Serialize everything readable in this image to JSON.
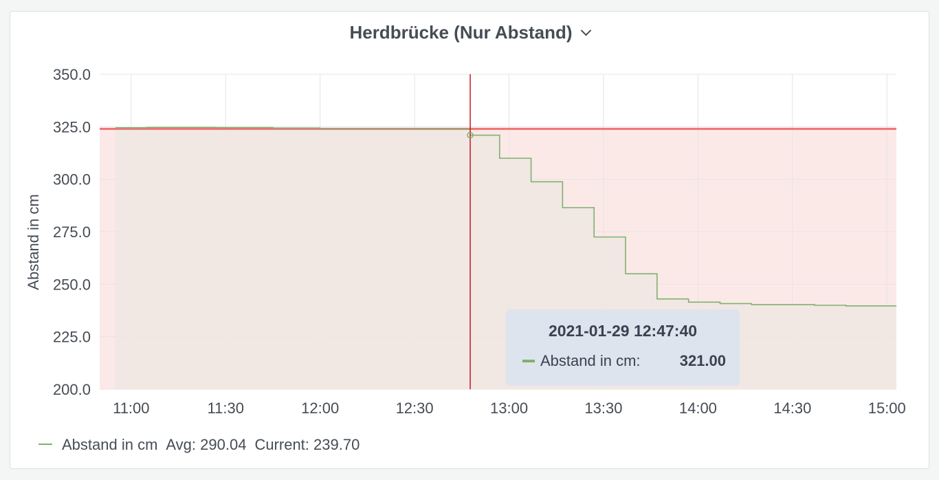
{
  "panel": {
    "title": "Herdbrücke (Nur Abstand)"
  },
  "colors": {
    "series": "#7eb26d",
    "threshold_line": "#f2726f",
    "threshold_fill": "#fbe9e8",
    "series_fill": "#efe7e2",
    "crosshair": "#c4162a",
    "grid": "#e4e4e4"
  },
  "chart_data": {
    "type": "line",
    "title": "Herdbrücke (Nur Abstand)",
    "ylabel": "Abstand in cm",
    "xlabel": "",
    "ylim": [
      200,
      350
    ],
    "xlim": [
      "10:50",
      "15:03"
    ],
    "yticks": [
      "200.0",
      "225.0",
      "250.0",
      "275.0",
      "300.0",
      "325.0",
      "350.0"
    ],
    "xticks": [
      "11:00",
      "11:30",
      "12:00",
      "12:30",
      "13:00",
      "13:30",
      "14:00",
      "14:30",
      "15:00"
    ],
    "grid": true,
    "step": true,
    "threshold": 324,
    "series": [
      {
        "name": "Abstand in cm",
        "color": "#7eb26d",
        "x": [
          "10:55",
          "11:05",
          "11:27",
          "11:45",
          "12:00",
          "12:30",
          "12:46",
          "12:47:40",
          "12:57",
          "13:07",
          "13:17",
          "13:27",
          "13:37",
          "13:47",
          "13:57",
          "14:07",
          "14:17",
          "14:37",
          "14:47",
          "15:03"
        ],
        "values": [
          324.5,
          324.7,
          324.6,
          324.4,
          324.2,
          324.1,
          324.0,
          321.0,
          310.0,
          298.8,
          286.5,
          272.5,
          255.0,
          243.0,
          241.5,
          240.8,
          240.3,
          240.0,
          239.7,
          239.7
        ]
      }
    ],
    "legend": {
      "placement": "bottom-left",
      "series_name": "Abstand in cm",
      "avg": "Avg: 290.04",
      "current": "Current: 239.70"
    },
    "tooltip": {
      "time": "2021-01-29 12:47:40",
      "label": "Abstand in cm:",
      "value": "321.00"
    },
    "crosshair_x": "12:47:40"
  }
}
